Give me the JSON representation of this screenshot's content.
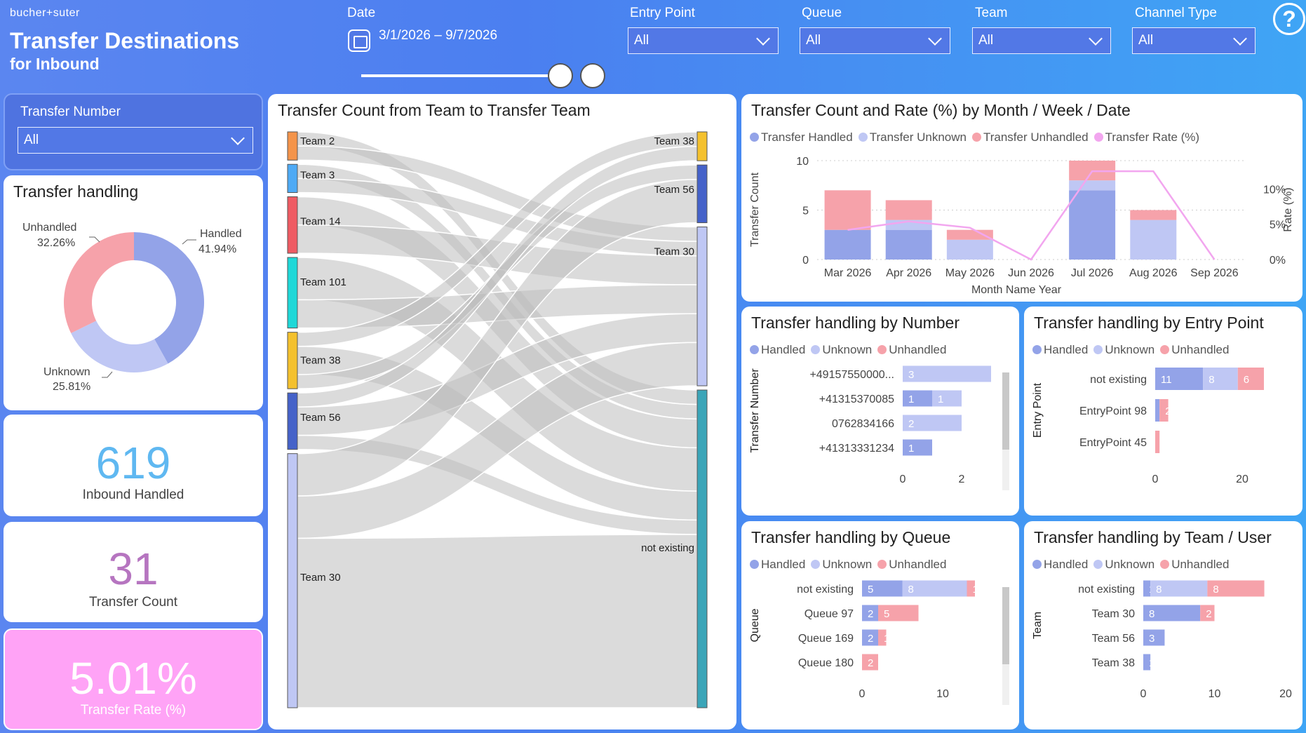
{
  "header": {
    "logo": "bucher+suter",
    "title_line1": "Transfer Destinations",
    "title_line2": "for Inbound",
    "help_symbol": "?"
  },
  "filters": {
    "date_label": "Date",
    "date_range": "3/1/2026 – 9/7/2026",
    "entry_point_label": "Entry Point",
    "entry_point_value": "All",
    "queue_label": "Queue",
    "queue_value": "All",
    "team_label": "Team",
    "team_value": "All",
    "channel_type_label": "Channel Type",
    "channel_type_value": "All",
    "transfer_number_label": "Transfer Number",
    "transfer_number_value": "All"
  },
  "colors": {
    "handled": "#93a3e8",
    "unknown": "#bfc7f4",
    "unhandled": "#f6a2aa",
    "rate": "#f2a6ef",
    "kpi_blue": "#5fb8f1",
    "kpi_purple": "#b675c0",
    "kpi_pink_bg": "#ffa3f6"
  },
  "transfer_handling": {
    "title": "Transfer handling",
    "slices": [
      {
        "name": "Handled",
        "pct": 41.94,
        "label": "41.94%"
      },
      {
        "name": "Unknown",
        "pct": 25.81,
        "label": "25.81%"
      },
      {
        "name": "Unhandled",
        "pct": 32.26,
        "label": "32.26%"
      }
    ]
  },
  "kpis": {
    "inbound_handled_value": "619",
    "inbound_handled_label": "Inbound Handled",
    "transfer_count_value": "31",
    "transfer_count_label": "Transfer Count",
    "transfer_rate_value": "5.01%",
    "transfer_rate_label": "Transfer Rate (%)"
  },
  "sankey": {
    "title": "Transfer Count from Team to Transfer Team",
    "sources": [
      {
        "name": "Team 2",
        "value": 2,
        "color": "#f4944a"
      },
      {
        "name": "Team 3",
        "value": 2,
        "color": "#4eaaf5"
      },
      {
        "name": "Team 14",
        "value": 4,
        "color": "#ef5b63"
      },
      {
        "name": "Team 101",
        "value": 5,
        "color": "#1fd8d8"
      },
      {
        "name": "Team 38",
        "value": 4,
        "color": "#f4c12e"
      },
      {
        "name": "Team 56",
        "value": 4,
        "color": "#4562c9"
      },
      {
        "name": "Team 30",
        "value": 18,
        "color": "#bfc7f4"
      }
    ],
    "targets": [
      {
        "name": "Team 38",
        "value": 2,
        "color": "#f4c12e"
      },
      {
        "name": "Team 56",
        "value": 4,
        "color": "#4562c9"
      },
      {
        "name": "Team 30",
        "value": 11,
        "color": "#bfc7f4"
      },
      {
        "name": "not existing",
        "value": 22,
        "color": "#3ba5b8"
      }
    ]
  },
  "trend": {
    "title": "Transfer Count and Rate (%) by Month / Week / Date",
    "legend": [
      "Transfer Handled",
      "Transfer Unknown",
      "Transfer Unhandled",
      "Transfer Rate (%)"
    ]
  },
  "panels": {
    "by_number_title": "Transfer handling by Number",
    "by_entry_title": "Transfer handling by Entry Point",
    "by_queue_title": "Transfer handling by Queue",
    "by_team_title": "Transfer handling by Team / User",
    "legend": [
      "Handled",
      "Unknown",
      "Unhandled"
    ]
  },
  "chart_data": [
    {
      "type": "pie",
      "title": "Transfer handling",
      "categories": [
        "Handled",
        "Unknown",
        "Unhandled"
      ],
      "values": [
        41.94,
        25.81,
        32.26
      ]
    },
    {
      "type": "bar",
      "title": "Transfer Count and Rate (%) by Month / Week / Date",
      "xlabel": "Month Name Year",
      "ylabel": "Transfer Count",
      "y2label": "Rate (%)",
      "categories": [
        "Mar 2026",
        "Apr 2026",
        "May 2026",
        "Jun 2026",
        "Jul 2026",
        "Aug 2026",
        "Sep 2026"
      ],
      "ylim": [
        0,
        10
      ],
      "yticks": [
        "0",
        "5",
        "10"
      ],
      "y2ticks": [
        "0%",
        "5%",
        "10%"
      ],
      "series": [
        {
          "name": "Transfer Handled",
          "values": [
            3,
            3,
            0,
            0,
            7,
            0,
            0
          ]
        },
        {
          "name": "Transfer Unknown",
          "values": [
            0,
            1,
            2,
            0,
            1,
            4,
            0
          ]
        },
        {
          "name": "Transfer Unhandled",
          "values": [
            4,
            2,
            1,
            0,
            2,
            1,
            0
          ]
        },
        {
          "name": "Transfer Rate (%)",
          "values": [
            4.2,
            5.4,
            4.5,
            0,
            12.5,
            12.5,
            0
          ]
        }
      ]
    },
    {
      "type": "bar",
      "orientation": "horizontal",
      "title": "Transfer handling by Number",
      "ylabel": "Transfer Number",
      "categories": [
        "+49157550000...",
        "+41315370085",
        "0762834166",
        "+41313331234"
      ],
      "xticks": [
        "0",
        "2"
      ],
      "xlim": [
        0,
        3
      ],
      "series": [
        {
          "name": "Handled",
          "values": [
            0,
            1,
            0,
            1
          ]
        },
        {
          "name": "Unknown",
          "values": [
            3,
            1,
            2,
            0
          ]
        },
        {
          "name": "Unhandled",
          "values": [
            0,
            0,
            0,
            0
          ]
        }
      ]
    },
    {
      "type": "bar",
      "orientation": "horizontal",
      "title": "Transfer handling by Entry Point",
      "ylabel": "Entry Point",
      "categories": [
        "not existing",
        "EntryPoint 98",
        "EntryPoint 45"
      ],
      "xticks": [
        "0",
        "20"
      ],
      "xlim": [
        0,
        30
      ],
      "series": [
        {
          "name": "Handled",
          "values": [
            11,
            1,
            0
          ]
        },
        {
          "name": "Unknown",
          "values": [
            8,
            0,
            0
          ]
        },
        {
          "name": "Unhandled",
          "values": [
            6,
            2,
            1
          ]
        }
      ]
    },
    {
      "type": "bar",
      "orientation": "horizontal",
      "title": "Transfer handling by Queue",
      "ylabel": "Queue",
      "categories": [
        "not existing",
        "Queue 97",
        "Queue 169",
        "Queue 180"
      ],
      "xticks": [
        "0",
        "10"
      ],
      "xlim": [
        0,
        16
      ],
      "series": [
        {
          "name": "Handled",
          "values": [
            5,
            2,
            2,
            0
          ]
        },
        {
          "name": "Unknown",
          "values": [
            8,
            0,
            0,
            0
          ]
        },
        {
          "name": "Unhandled",
          "values": [
            1,
            5,
            1,
            2
          ]
        }
      ]
    },
    {
      "type": "bar",
      "orientation": "horizontal",
      "title": "Transfer handling by Team / User",
      "ylabel": "Team",
      "categories": [
        "not existing",
        "Team 30",
        "Team 56",
        "Team 38"
      ],
      "xticks": [
        "0",
        "10",
        "20"
      ],
      "xlim": [
        0,
        20
      ],
      "series": [
        {
          "name": "Handled",
          "values": [
            1,
            8,
            3,
            1
          ]
        },
        {
          "name": "Unknown",
          "values": [
            8,
            0,
            0,
            0
          ]
        },
        {
          "name": "Unhandled",
          "values": [
            8,
            2,
            0,
            0
          ]
        }
      ]
    }
  ]
}
